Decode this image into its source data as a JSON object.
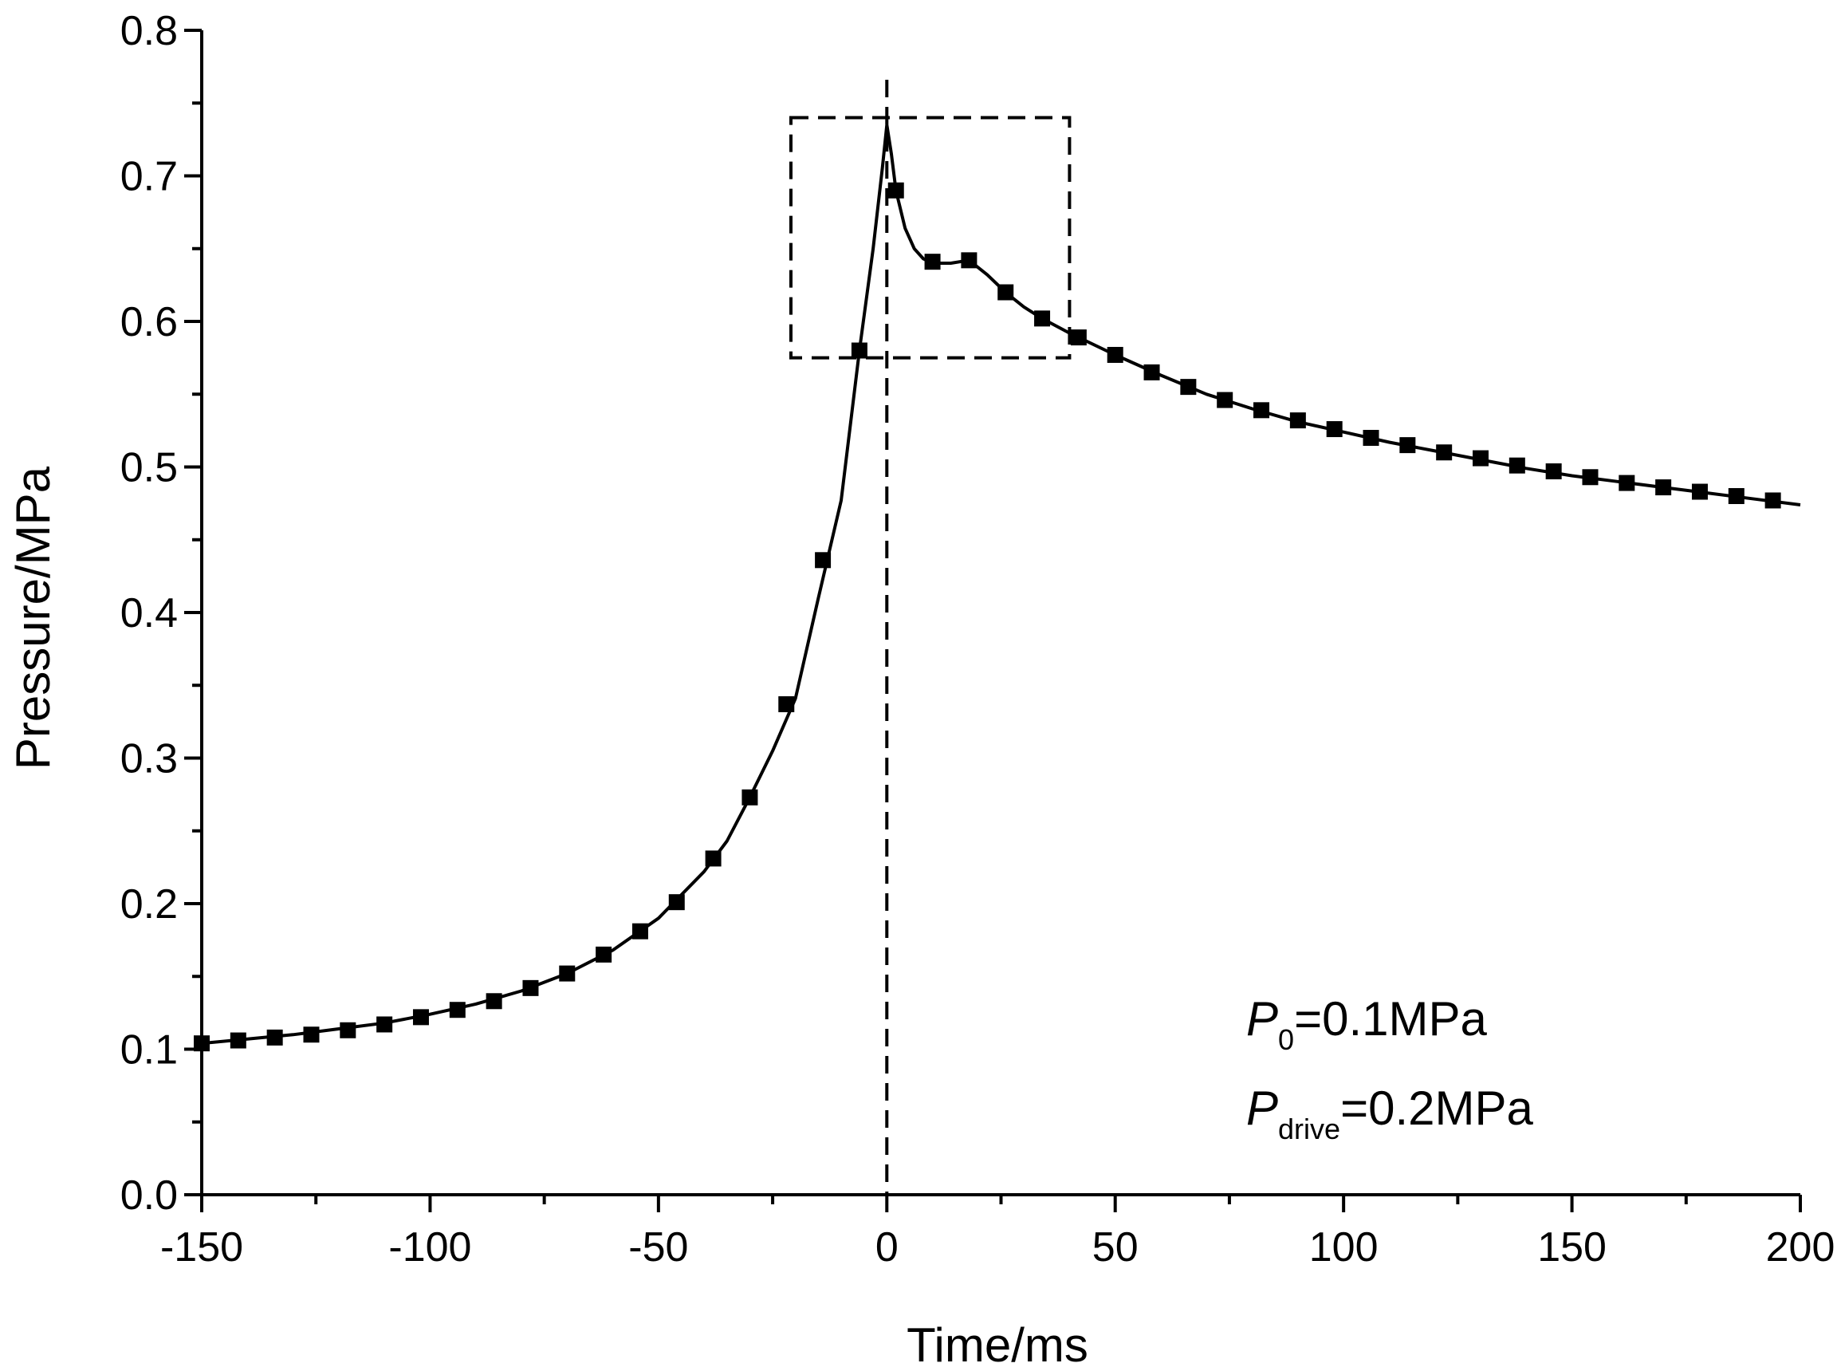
{
  "chart_data": {
    "type": "line",
    "title": "",
    "xlabel": "Time/ms",
    "ylabel": "Pressure/MPa",
    "xlim": [
      -150,
      200
    ],
    "ylim": [
      0.0,
      0.8
    ],
    "x_ticks": [
      -150,
      -100,
      -50,
      0,
      50,
      100,
      150,
      200
    ],
    "x_tick_labels": [
      "-150",
      "-100",
      "-50",
      "0",
      "50",
      "100",
      "150",
      "200"
    ],
    "y_ticks": [
      0.0,
      0.1,
      0.2,
      0.3,
      0.4,
      0.5,
      0.6,
      0.7,
      0.8
    ],
    "y_tick_labels": [
      "0.0",
      "0.1",
      "0.2",
      "0.3",
      "0.4",
      "0.5",
      "0.6",
      "0.7",
      "0.8"
    ],
    "grid": false,
    "legend": "none",
    "series": [
      {
        "name": "Pressure",
        "style": "solid line with square markers",
        "line": [
          [
            -150,
            0.104
          ],
          [
            -140,
            0.107
          ],
          [
            -130,
            0.11
          ],
          [
            -120,
            0.114
          ],
          [
            -110,
            0.118
          ],
          [
            -100,
            0.124
          ],
          [
            -90,
            0.131
          ],
          [
            -80,
            0.14
          ],
          [
            -70,
            0.152
          ],
          [
            -60,
            0.168
          ],
          [
            -50,
            0.19
          ],
          [
            -40,
            0.222
          ],
          [
            -35,
            0.243
          ],
          [
            -30,
            0.273
          ],
          [
            -25,
            0.305
          ],
          [
            -20,
            0.341
          ],
          [
            -15,
            0.41
          ],
          [
            -10,
            0.477
          ],
          [
            -6,
            0.58
          ],
          [
            -3,
            0.65
          ],
          [
            -1,
            0.705
          ],
          [
            0,
            0.735
          ],
          [
            1,
            0.715
          ],
          [
            2,
            0.69
          ],
          [
            4,
            0.664
          ],
          [
            6,
            0.65
          ],
          [
            8,
            0.643
          ],
          [
            10,
            0.64
          ],
          [
            14,
            0.64
          ],
          [
            18,
            0.642
          ],
          [
            22,
            0.632
          ],
          [
            26,
            0.62
          ],
          [
            30,
            0.61
          ],
          [
            34,
            0.602
          ],
          [
            40,
            0.592
          ],
          [
            50,
            0.577
          ],
          [
            60,
            0.563
          ],
          [
            70,
            0.55
          ],
          [
            80,
            0.54
          ],
          [
            90,
            0.531
          ],
          [
            100,
            0.524
          ],
          [
            110,
            0.517
          ],
          [
            120,
            0.511
          ],
          [
            130,
            0.505
          ],
          [
            140,
            0.499
          ],
          [
            150,
            0.494
          ],
          [
            160,
            0.49
          ],
          [
            170,
            0.486
          ],
          [
            180,
            0.482
          ],
          [
            190,
            0.478
          ],
          [
            200,
            0.474
          ]
        ],
        "markers": [
          [
            -150,
            0.104
          ],
          [
            -142,
            0.106
          ],
          [
            -134,
            0.108
          ],
          [
            -126,
            0.11
          ],
          [
            -118,
            0.113
          ],
          [
            -110,
            0.117
          ],
          [
            -102,
            0.122
          ],
          [
            -94,
            0.127
          ],
          [
            -86,
            0.133
          ],
          [
            -78,
            0.142
          ],
          [
            -70,
            0.152
          ],
          [
            -62,
            0.165
          ],
          [
            -54,
            0.181
          ],
          [
            -46,
            0.201
          ],
          [
            -38,
            0.231
          ],
          [
            -30,
            0.273
          ],
          [
            -22,
            0.337
          ],
          [
            -14,
            0.436
          ],
          [
            -6,
            0.58
          ],
          [
            2,
            0.69
          ],
          [
            10,
            0.641
          ],
          [
            18,
            0.642
          ],
          [
            26,
            0.62
          ],
          [
            34,
            0.602
          ],
          [
            42,
            0.589
          ],
          [
            50,
            0.577
          ],
          [
            58,
            0.565
          ],
          [
            66,
            0.555
          ],
          [
            74,
            0.546
          ],
          [
            82,
            0.539
          ],
          [
            90,
            0.532
          ],
          [
            98,
            0.526
          ],
          [
            106,
            0.52
          ],
          [
            114,
            0.515
          ],
          [
            122,
            0.51
          ],
          [
            130,
            0.506
          ],
          [
            138,
            0.501
          ],
          [
            146,
            0.497
          ],
          [
            154,
            0.493
          ],
          [
            162,
            0.489
          ],
          [
            170,
            0.486
          ],
          [
            178,
            0.483
          ],
          [
            186,
            0.48
          ],
          [
            194,
            0.477
          ]
        ]
      }
    ],
    "reference_line": {
      "x": 0,
      "style": "dashed vertical"
    },
    "highlight_box": {
      "x_range": [
        -21,
        40
      ],
      "y_range": [
        0.575,
        0.74
      ],
      "style": "dashed rectangle"
    },
    "annotations": [
      {
        "symbol": "P",
        "subscript": "0",
        "text": "=0.1MPa"
      },
      {
        "symbol": "P",
        "subscript": "drive",
        "text": "=0.2MPa"
      }
    ]
  }
}
